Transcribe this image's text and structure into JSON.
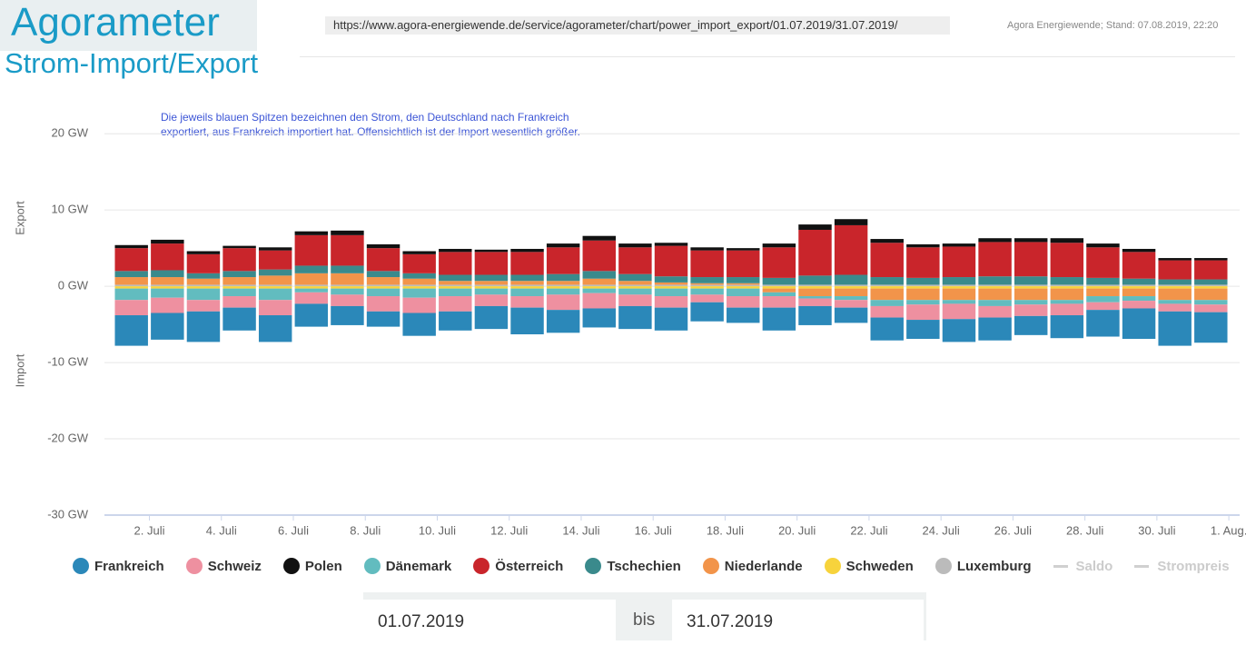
{
  "header": {
    "logo": "Agorameter",
    "url": "https://www.agora-energiewende.de/service/agorameter/chart/power_import_export/01.07.2019/31.07.2019/",
    "stand": "Agora Energiewende; Stand: 07.08.2019, 22:20"
  },
  "chart_data": {
    "type": "stacked-bar",
    "title": "Strom-Import/Export",
    "annotation": [
      "Die jeweils blauen Spitzen bezeichnen den Strom, den Deutschland nach Frankreich",
      "exportiert, aus Frankreich importiert hat. Offensichtlich ist der Import wesentlich größer."
    ],
    "y_label_top": "Export",
    "y_label_bottom": "Import",
    "x": [
      1.5,
      2.5,
      3.5,
      4.5,
      5.5,
      6.5,
      7.5,
      8.5,
      9.5,
      10.5,
      11.5,
      12.5,
      13.5,
      14.5,
      15.5,
      16.5,
      17.5,
      18.5,
      19.5,
      20.5,
      21.5,
      22.5,
      23.5,
      24.5,
      25.5,
      26.5,
      27.5,
      28.5,
      29.5,
      30.5,
      31.5
    ],
    "xlim": [
      0.75,
      32.3
    ],
    "xticks": [
      {
        "value": 2,
        "label": "2. Juli"
      },
      {
        "value": 4,
        "label": "4. Juli"
      },
      {
        "value": 6,
        "label": "6. Juli"
      },
      {
        "value": 8,
        "label": "8. Juli"
      },
      {
        "value": 10,
        "label": "10. Juli"
      },
      {
        "value": 12,
        "label": "12. Juli"
      },
      {
        "value": 14,
        "label": "14. Juli"
      },
      {
        "value": 16,
        "label": "16. Juli"
      },
      {
        "value": 18,
        "label": "18. Juli"
      },
      {
        "value": 20,
        "label": "20. Juli"
      },
      {
        "value": 22,
        "label": "22. Juli"
      },
      {
        "value": 24,
        "label": "24. Juli"
      },
      {
        "value": 26,
        "label": "26. Juli"
      },
      {
        "value": 28,
        "label": "28. Juli"
      },
      {
        "value": 30,
        "label": "30. Juli"
      },
      {
        "value": 32,
        "label": "1. Aug."
      }
    ],
    "ylim": [
      -30,
      23
    ],
    "yticks": [
      {
        "value": 20,
        "label": "20 GW"
      },
      {
        "value": 10,
        "label": "10 GW"
      },
      {
        "value": 0,
        "label": "0 GW"
      },
      {
        "value": -10,
        "label": "-10 GW"
      },
      {
        "value": -20,
        "label": "-20 GW"
      },
      {
        "value": -30,
        "label": "-30 GW"
      }
    ],
    "grid": true,
    "series": [
      {
        "name": "Frankreich",
        "color": "#2b88b9",
        "values": [
          -4,
          -3.5,
          -4,
          -3,
          -3.5,
          -3,
          -2.5,
          -2,
          -3,
          -2.5,
          -3,
          -3.5,
          -3,
          -2.5,
          -3,
          -3,
          -2.5,
          -2,
          -3,
          -2.5,
          -2,
          -3,
          -2.5,
          -3,
          -3,
          -2.5,
          -3,
          -3.5,
          -4,
          -4.5,
          -4
        ]
      },
      {
        "name": "Schweiz",
        "color": "#ee90a0",
        "values": [
          -2,
          -2,
          -1.5,
          -1.5,
          -2,
          -1.5,
          -1.5,
          -2,
          -2,
          -2,
          -1.5,
          -1.5,
          -2,
          -2,
          -1.5,
          -1.5,
          -1,
          -1.5,
          -1.5,
          -1,
          -1,
          -1.5,
          -2,
          -2,
          -1.5,
          -1.5,
          -1.5,
          -1,
          -1,
          -1,
          -1
        ]
      },
      {
        "name": "Polen",
        "color": "#111111",
        "values": [
          0.4,
          0.5,
          0.4,
          0.3,
          0.4,
          0.5,
          0.6,
          0.5,
          0.4,
          0.4,
          0.3,
          0.4,
          0.5,
          0.6,
          0.5,
          0.4,
          0.4,
          0.3,
          0.5,
          0.7,
          0.8,
          0.5,
          0.4,
          0.4,
          0.5,
          0.5,
          0.6,
          0.5,
          0.4,
          0.3,
          0.3
        ]
      },
      {
        "name": "Dänemark",
        "color": "#62bcbf",
        "values": [
          -1.5,
          -1.2,
          -1.5,
          -1,
          -1.5,
          -0.5,
          -0.8,
          -1,
          -1.2,
          -1,
          -0.8,
          -1,
          -0.8,
          -0.6,
          -0.8,
          -1,
          -0.8,
          -1,
          -0.5,
          -0.3,
          -0.5,
          -0.8,
          -0.6,
          -0.5,
          -0.8,
          -0.6,
          -0.5,
          -0.8,
          -0.6,
          -0.5,
          -0.6
        ]
      },
      {
        "name": "Österreich",
        "color": "#c9252b",
        "values": [
          3,
          3.5,
          2.5,
          3,
          2.5,
          4,
          4,
          3,
          2.5,
          3,
          3,
          3,
          3.5,
          4,
          3.5,
          4,
          3.5,
          3.5,
          4,
          6,
          6.5,
          4.5,
          4,
          4,
          4.5,
          4.5,
          4.5,
          4,
          3.5,
          2.5,
          2.5
        ]
      },
      {
        "name": "Tschechien",
        "color": "#3a8a8c",
        "values": [
          0.8,
          0.9,
          0.7,
          0.8,
          0.8,
          1,
          1,
          0.8,
          0.7,
          0.8,
          0.8,
          0.8,
          0.9,
          1,
          0.9,
          0.8,
          0.8,
          0.8,
          0.9,
          1.2,
          1.3,
          1,
          0.9,
          1,
          1.1,
          1.1,
          1,
          0.9,
          0.8,
          0.7,
          0.7
        ]
      },
      {
        "name": "Niederlande",
        "color": "#f2944a",
        "values": [
          1,
          1,
          0.8,
          1,
          1.2,
          1.5,
          1.5,
          1,
          0.8,
          0.5,
          0.5,
          0.5,
          0.5,
          0.8,
          0.5,
          0.3,
          0.2,
          0.2,
          -0.5,
          -1,
          -1,
          -1.5,
          -1.5,
          -1.5,
          -1.5,
          -1.5,
          -1.5,
          -1,
          -1,
          -1.5,
          -1.5
        ]
      },
      {
        "name": "Schweden",
        "color": "#f7d33c",
        "values": [
          -0.3,
          -0.3,
          -0.3,
          -0.3,
          -0.3,
          -0.3,
          -0.3,
          -0.3,
          -0.3,
          -0.3,
          -0.3,
          -0.3,
          -0.3,
          -0.3,
          -0.3,
          -0.3,
          -0.3,
          -0.3,
          -0.3,
          -0.3,
          -0.3,
          -0.3,
          -0.3,
          -0.3,
          -0.3,
          -0.3,
          -0.3,
          -0.3,
          -0.3,
          -0.3,
          -0.3
        ]
      },
      {
        "name": "Luxemburg",
        "color": "#bbbbbb",
        "values": [
          0.2,
          0.2,
          0.2,
          0.2,
          0.2,
          0.2,
          0.2,
          0.2,
          0.2,
          0.2,
          0.2,
          0.2,
          0.2,
          0.2,
          0.2,
          0.2,
          0.2,
          0.2,
          0.2,
          0.2,
          0.2,
          0.2,
          0.2,
          0.2,
          0.2,
          0.2,
          0.2,
          0.2,
          0.2,
          0.2,
          0.2
        ]
      }
    ],
    "legend_hidden": [
      {
        "name": "Saldo",
        "color": "#d0d0d0"
      },
      {
        "name": "Strompreis",
        "color": "#d0d0d0"
      }
    ]
  },
  "form": {
    "from": "01.07.2019",
    "separator": "bis",
    "to": "31.07.2019"
  }
}
